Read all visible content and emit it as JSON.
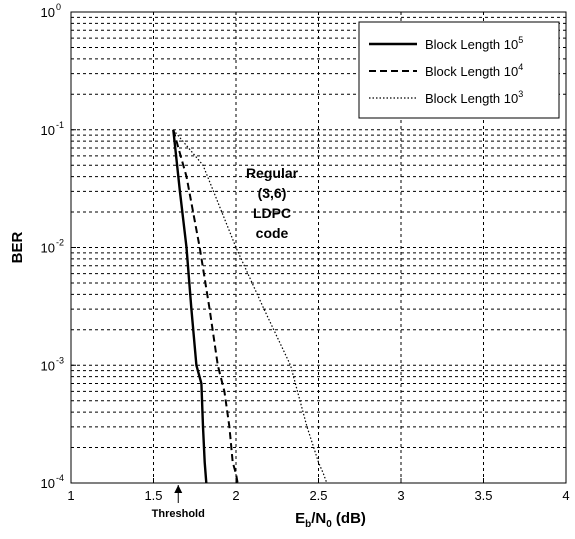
{
  "chart_data": {
    "type": "line",
    "title": "",
    "xlabel": {
      "main": "E",
      "sub1": "b",
      "mid": "/N",
      "sub2": "0",
      "rest": " (dB)"
    },
    "ylabel": "BER",
    "xlim": [
      1,
      4
    ],
    "ylim": [
      0.0001,
      1
    ],
    "yscale": "log",
    "grid": "on (major and minor, dashed)",
    "legend_position": "top-right",
    "x_ticks": [
      "1",
      "1.5",
      "2",
      "2.5",
      "3",
      "3.5",
      "4"
    ],
    "y_ticks": [
      {
        "base": "10",
        "exp": "0"
      },
      {
        "base": "10",
        "exp": "-1"
      },
      {
        "base": "10",
        "exp": "-2"
      },
      {
        "base": "10",
        "exp": "-3"
      },
      {
        "base": "10",
        "exp": "-4"
      }
    ],
    "series": [
      {
        "name": {
          "base": "Block Length 10",
          "exp": "5"
        },
        "style": "solid",
        "x": [
          1.62,
          1.66,
          1.7,
          1.73,
          1.76,
          1.79,
          1.8,
          1.81,
          1.82
        ],
        "y": [
          0.1,
          0.03,
          0.01,
          0.003,
          0.001,
          0.0007,
          0.0003,
          0.00015,
          0.0001
        ]
      },
      {
        "name": {
          "base": "Block Length 10",
          "exp": "4"
        },
        "style": "dashed",
        "x": [
          1.62,
          1.7,
          1.78,
          1.84,
          1.89,
          1.93,
          1.96,
          1.98,
          2.0,
          2.01
        ],
        "y": [
          0.1,
          0.04,
          0.01,
          0.003,
          0.001,
          0.0006,
          0.0003,
          0.00015,
          0.00012,
          0.0001
        ]
      },
      {
        "name": {
          "base": "Block Length 10",
          "exp": "3"
        },
        "style": "dotted",
        "x": [
          1.62,
          1.8,
          2.0,
          2.17,
          2.33,
          2.43,
          2.5,
          2.53,
          2.55
        ],
        "y": [
          0.1,
          0.05,
          0.01,
          0.003,
          0.001,
          0.0003,
          0.00015,
          0.00012,
          0.0001
        ]
      }
    ],
    "annotations": {
      "region_label": [
        "Regular",
        "(3,6)",
        "LDPC",
        "code"
      ],
      "threshold_label": "Threshold",
      "threshold_x": 1.65
    }
  }
}
